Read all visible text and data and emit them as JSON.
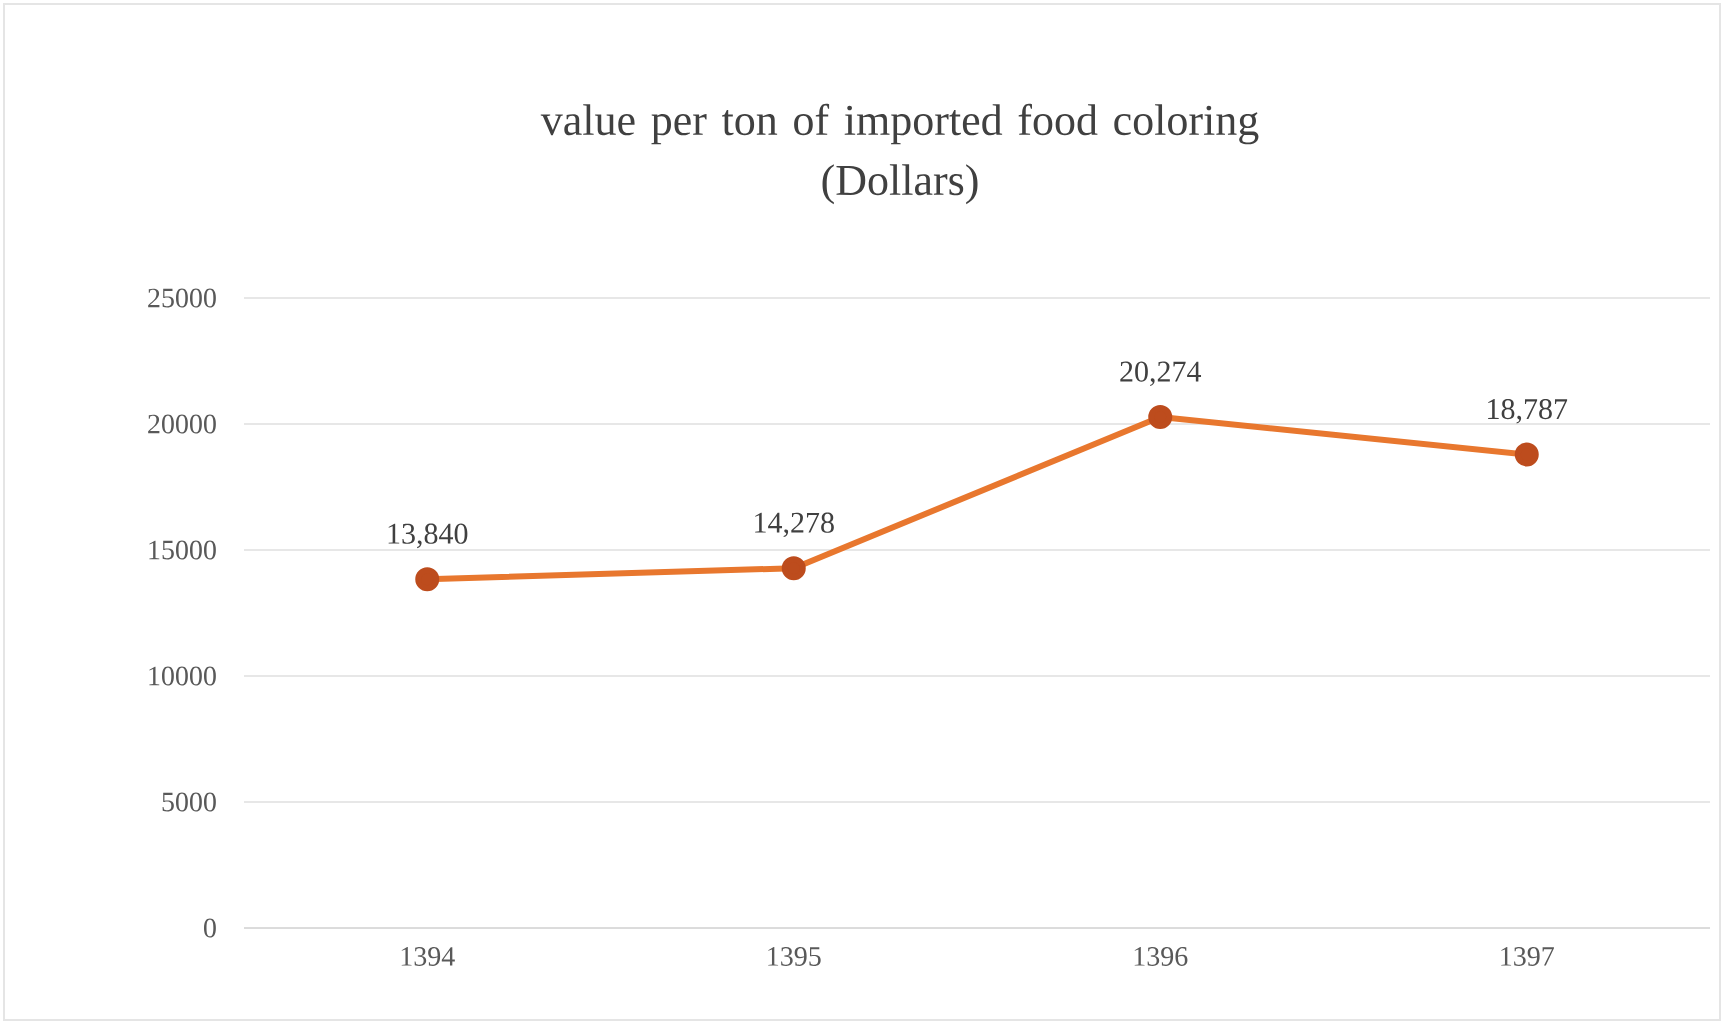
{
  "chart_data": {
    "type": "line",
    "title": "value per ton of imported food coloring\n(Dollars)",
    "categories": [
      "1394",
      "1395",
      "1396",
      "1397"
    ],
    "series": [
      {
        "color": "#e8772e",
        "values": [
          13840,
          14278,
          20274,
          18787
        ],
        "value_labels": [
          "13,840",
          "14,278",
          "20,274",
          "18,787"
        ]
      }
    ],
    "ylim": [
      0,
      25000
    ],
    "yticks": [
      0,
      5000,
      10000,
      15000,
      20000,
      25000
    ],
    "grid": "y",
    "marker": "circle",
    "line_style": "solid"
  }
}
